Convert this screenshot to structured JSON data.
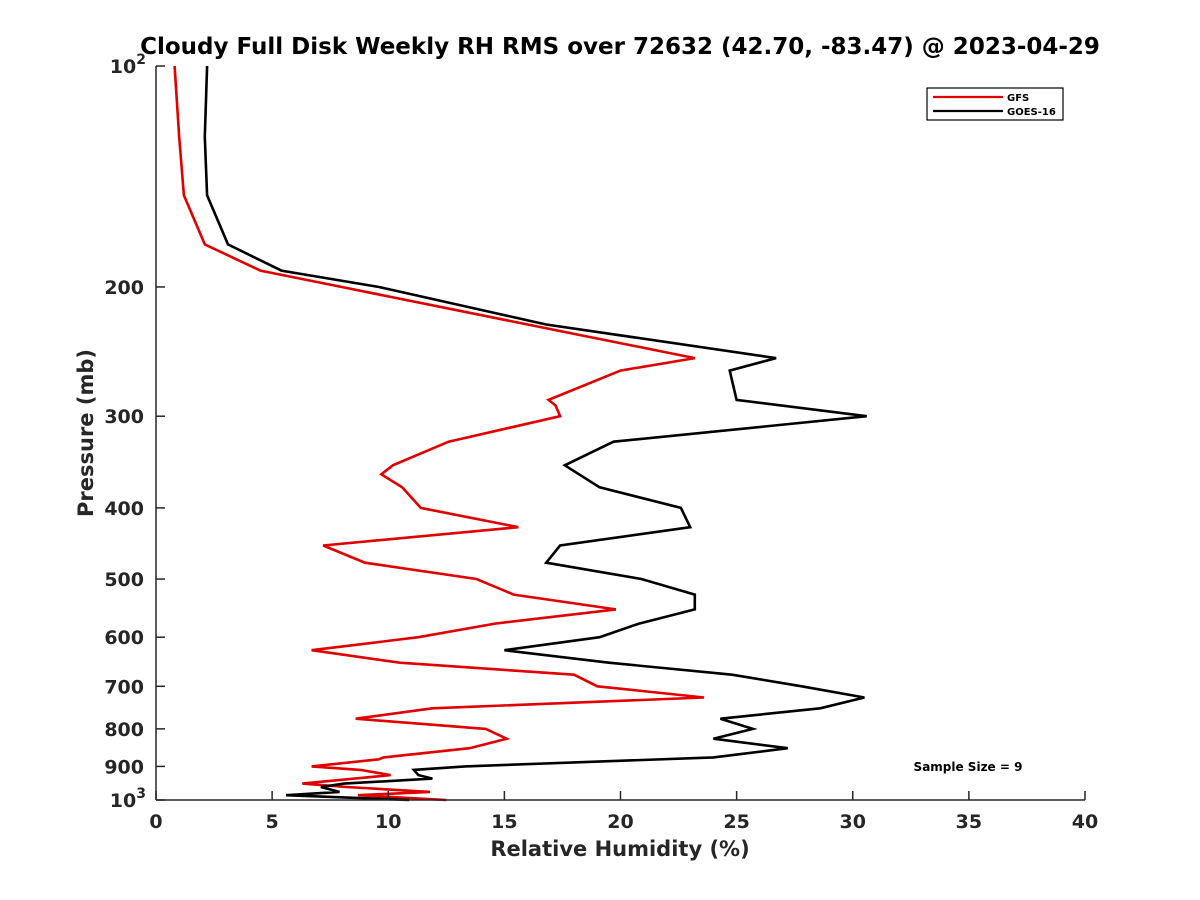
{
  "chart_data": {
    "type": "line",
    "title": "Cloudy Full Disk Weekly RH RMS over 72632 (42.70, -83.47) @ 2023-04-29",
    "xlabel": "Relative Humidity (%)",
    "ylabel": "Pressure (mb)",
    "xlim": [
      0,
      40
    ],
    "ylim": [
      100,
      1000
    ],
    "y_scale": "log",
    "y_reversed": true,
    "x_ticks": [
      "0",
      "5",
      "10",
      "15",
      "20",
      "25",
      "30",
      "35",
      "40"
    ],
    "y_ticks": [
      {
        "value": 100,
        "base": "10",
        "exp": "2",
        "label": ""
      },
      {
        "value": 200,
        "label": "200"
      },
      {
        "value": 300,
        "label": "300"
      },
      {
        "value": 400,
        "label": "400"
      },
      {
        "value": 500,
        "label": "500"
      },
      {
        "value": 600,
        "label": "600"
      },
      {
        "value": 700,
        "label": "700"
      },
      {
        "value": 800,
        "label": "800"
      },
      {
        "value": 900,
        "label": "900"
      },
      {
        "value": 1000,
        "base": "10",
        "exp": "3",
        "label": ""
      }
    ],
    "grid": false,
    "legend_position": "top-right",
    "annotation": "Sample Size = 9",
    "series": [
      {
        "name": "GFS",
        "color": "#e00000",
        "points": [
          [
            0.8,
            100
          ],
          [
            1.0,
            125
          ],
          [
            1.2,
            150
          ],
          [
            2.1,
            175
          ],
          [
            4.5,
            190
          ],
          [
            8.0,
            200
          ],
          [
            16.0,
            225
          ],
          [
            23.2,
            250
          ],
          [
            20.0,
            260
          ],
          [
            16.9,
            285
          ],
          [
            17.2,
            290
          ],
          [
            17.4,
            300
          ],
          [
            12.6,
            325
          ],
          [
            10.2,
            350
          ],
          [
            9.7,
            360
          ],
          [
            10.6,
            375
          ],
          [
            11.4,
            400
          ],
          [
            15.6,
            425
          ],
          [
            7.2,
            450
          ],
          [
            9.0,
            475
          ],
          [
            13.8,
            500
          ],
          [
            15.4,
            525
          ],
          [
            19.8,
            550
          ],
          [
            14.6,
            575
          ],
          [
            11.3,
            600
          ],
          [
            6.7,
            625
          ],
          [
            10.5,
            650
          ],
          [
            18.0,
            675
          ],
          [
            19.0,
            700
          ],
          [
            23.6,
            725
          ],
          [
            11.9,
            750
          ],
          [
            8.6,
            775
          ],
          [
            14.2,
            800
          ],
          [
            15.1,
            825
          ],
          [
            13.5,
            850
          ],
          [
            9.8,
            875
          ],
          [
            9.6,
            880
          ],
          [
            6.7,
            900
          ],
          [
            8.8,
            910
          ],
          [
            10.1,
            925
          ],
          [
            6.3,
            950
          ],
          [
            8.2,
            960
          ],
          [
            11.8,
            975
          ],
          [
            8.7,
            985
          ],
          [
            12.5,
            1000
          ]
        ]
      },
      {
        "name": "GOES-16",
        "color": "#000000",
        "points": [
          [
            2.2,
            100
          ],
          [
            2.1,
            125
          ],
          [
            2.2,
            150
          ],
          [
            3.1,
            175
          ],
          [
            5.4,
            190
          ],
          [
            9.6,
            200
          ],
          [
            16.8,
            225
          ],
          [
            26.7,
            250
          ],
          [
            24.7,
            260
          ],
          [
            25.0,
            285
          ],
          [
            30.6,
            300
          ],
          [
            19.7,
            325
          ],
          [
            17.6,
            350
          ],
          [
            19.1,
            375
          ],
          [
            22.6,
            400
          ],
          [
            23.0,
            425
          ],
          [
            17.4,
            450
          ],
          [
            16.8,
            475
          ],
          [
            20.9,
            500
          ],
          [
            23.2,
            525
          ],
          [
            23.2,
            550
          ],
          [
            20.8,
            575
          ],
          [
            19.1,
            600
          ],
          [
            15.0,
            625
          ],
          [
            19.5,
            650
          ],
          [
            24.8,
            675
          ],
          [
            27.8,
            700
          ],
          [
            30.5,
            725
          ],
          [
            28.6,
            750
          ],
          [
            24.3,
            775
          ],
          [
            25.7,
            800
          ],
          [
            24.0,
            825
          ],
          [
            27.2,
            850
          ],
          [
            24.0,
            875
          ],
          [
            13.3,
            900
          ],
          [
            11.1,
            910
          ],
          [
            11.3,
            925
          ],
          [
            11.9,
            935
          ],
          [
            8.1,
            950
          ],
          [
            7.1,
            960
          ],
          [
            7.9,
            975
          ],
          [
            5.6,
            985
          ],
          [
            10.9,
            1000
          ]
        ]
      }
    ]
  }
}
